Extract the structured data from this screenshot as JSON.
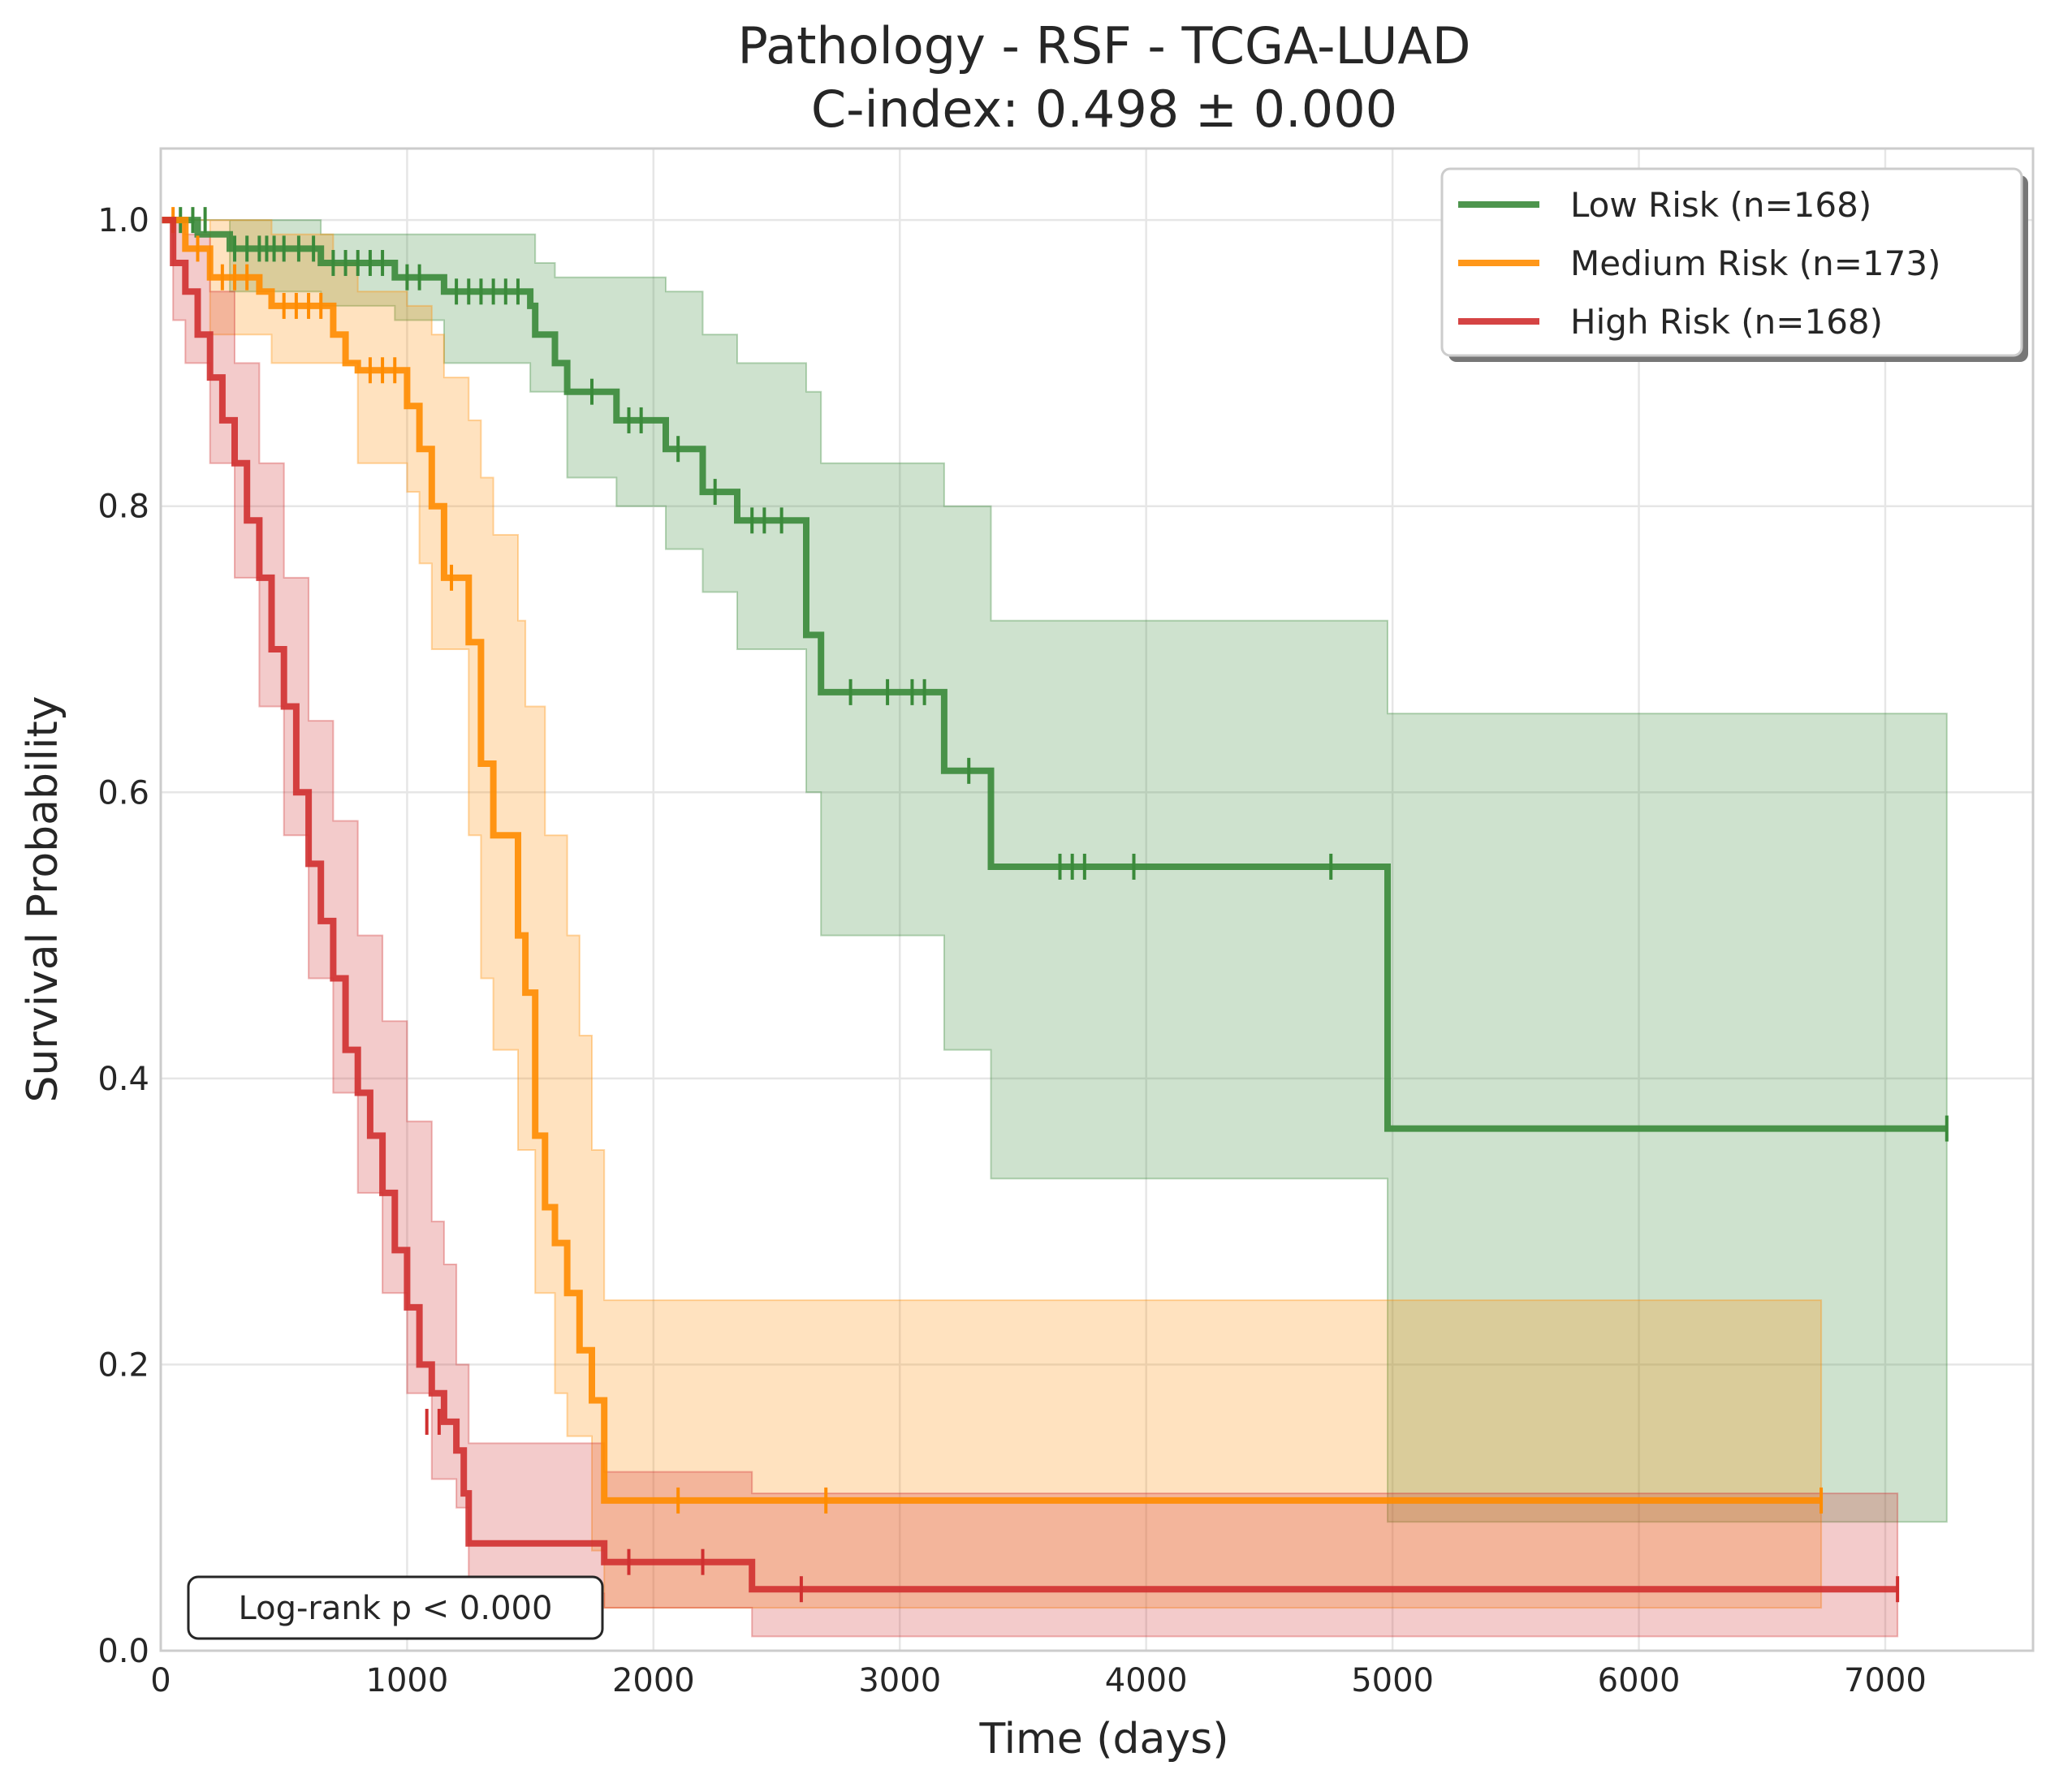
{
  "chart_data": {
    "type": "line",
    "subtype": "kaplan-meier",
    "title": "Pathology - RSF - TCGA-LUAD",
    "subtitle": "C-index: 0.498 ± 0.000",
    "xlabel": "Time (days)",
    "ylabel": "Survival Probability",
    "xlim": [
      0,
      7600
    ],
    "ylim": [
      0,
      1.05
    ],
    "xticks": [
      0,
      1000,
      2000,
      3000,
      4000,
      5000,
      6000,
      7000
    ],
    "xtick_labels": [
      "0",
      "1000",
      "2000",
      "3000",
      "4000",
      "5000",
      "6000",
      "7000"
    ],
    "yticks": [
      0,
      0.2,
      0.4,
      0.6,
      0.8,
      1.0
    ],
    "ytick_labels": [
      "0.0",
      "0.2",
      "0.4",
      "0.6",
      "0.8",
      "1.0"
    ],
    "grid": true,
    "legend_position": "top-right",
    "annotation": "Log-rank p < 0.000",
    "series": [
      {
        "name": "Low Risk (n=168)",
        "color": "#3a8a3a",
        "steps": [
          [
            0,
            1.0
          ],
          [
            150,
            0.99
          ],
          [
            280,
            0.98
          ],
          [
            650,
            0.97
          ],
          [
            950,
            0.96
          ],
          [
            1150,
            0.95
          ],
          [
            1500,
            0.94
          ],
          [
            1520,
            0.92
          ],
          [
            1600,
            0.9
          ],
          [
            1650,
            0.88
          ],
          [
            1850,
            0.86
          ],
          [
            2050,
            0.84
          ],
          [
            2200,
            0.81
          ],
          [
            2340,
            0.79
          ],
          [
            2620,
            0.71
          ],
          [
            2680,
            0.67
          ],
          [
            3180,
            0.615
          ],
          [
            3370,
            0.548
          ],
          [
            4980,
            0.365
          ],
          [
            7250,
            0.365
          ]
        ],
        "ci_upper": [
          [
            0,
            1.0
          ],
          [
            280,
            1.0
          ],
          [
            650,
            0.99
          ],
          [
            950,
            0.99
          ],
          [
            1500,
            0.99
          ],
          [
            1520,
            0.97
          ],
          [
            1600,
            0.96
          ],
          [
            2050,
            0.95
          ],
          [
            2200,
            0.92
          ],
          [
            2340,
            0.9
          ],
          [
            2620,
            0.88
          ],
          [
            2680,
            0.83
          ],
          [
            3180,
            0.8
          ],
          [
            3370,
            0.76
          ],
          [
            3370,
            0.72
          ],
          [
            4980,
            0.655
          ],
          [
            7250,
            0.655
          ]
        ],
        "ci_lower": [
          [
            0,
            1.0
          ],
          [
            280,
            0.95
          ],
          [
            650,
            0.94
          ],
          [
            950,
            0.93
          ],
          [
            1150,
            0.9
          ],
          [
            1500,
            0.88
          ],
          [
            1650,
            0.82
          ],
          [
            1850,
            0.8
          ],
          [
            2050,
            0.77
          ],
          [
            2200,
            0.74
          ],
          [
            2340,
            0.7
          ],
          [
            2620,
            0.6
          ],
          [
            2680,
            0.5
          ],
          [
            3180,
            0.42
          ],
          [
            3370,
            0.33
          ],
          [
            4980,
            0.09
          ],
          [
            7250,
            0.09
          ]
        ],
        "censored": [
          [
            80,
            1.0
          ],
          [
            130,
            1.0
          ],
          [
            180,
            1.0
          ],
          [
            300,
            0.98
          ],
          [
            350,
            0.98
          ],
          [
            400,
            0.98
          ],
          [
            430,
            0.98
          ],
          [
            460,
            0.98
          ],
          [
            500,
            0.98
          ],
          [
            560,
            0.98
          ],
          [
            620,
            0.98
          ],
          [
            700,
            0.97
          ],
          [
            750,
            0.97
          ],
          [
            800,
            0.97
          ],
          [
            850,
            0.97
          ],
          [
            900,
            0.97
          ],
          [
            1000,
            0.96
          ],
          [
            1050,
            0.96
          ],
          [
            1200,
            0.95
          ],
          [
            1250,
            0.95
          ],
          [
            1300,
            0.95
          ],
          [
            1350,
            0.95
          ],
          [
            1400,
            0.95
          ],
          [
            1450,
            0.95
          ],
          [
            1750,
            0.88
          ],
          [
            1900,
            0.86
          ],
          [
            1950,
            0.86
          ],
          [
            2100,
            0.84
          ],
          [
            2250,
            0.81
          ],
          [
            2400,
            0.79
          ],
          [
            2450,
            0.79
          ],
          [
            2520,
            0.79
          ],
          [
            2800,
            0.67
          ],
          [
            2950,
            0.67
          ],
          [
            3050,
            0.67
          ],
          [
            3100,
            0.67
          ],
          [
            3280,
            0.615
          ],
          [
            3650,
            0.548
          ],
          [
            3700,
            0.548
          ],
          [
            3750,
            0.548
          ],
          [
            3950,
            0.548
          ],
          [
            4750,
            0.548
          ],
          [
            7250,
            0.365
          ]
        ]
      },
      {
        "name": "Medium Risk (n=173)",
        "color": "#ff8c00",
        "steps": [
          [
            0,
            1.0
          ],
          [
            100,
            0.98
          ],
          [
            200,
            0.96
          ],
          [
            400,
            0.95
          ],
          [
            450,
            0.94
          ],
          [
            700,
            0.92
          ],
          [
            750,
            0.9
          ],
          [
            800,
            0.895
          ],
          [
            1000,
            0.87
          ],
          [
            1050,
            0.84
          ],
          [
            1100,
            0.8
          ],
          [
            1150,
            0.75
          ],
          [
            1250,
            0.705
          ],
          [
            1300,
            0.62
          ],
          [
            1350,
            0.57
          ],
          [
            1450,
            0.5
          ],
          [
            1480,
            0.46
          ],
          [
            1520,
            0.36
          ],
          [
            1560,
            0.31
          ],
          [
            1600,
            0.285
          ],
          [
            1650,
            0.25
          ],
          [
            1700,
            0.21
          ],
          [
            1750,
            0.175
          ],
          [
            1800,
            0.105
          ],
          [
            6740,
            0.105
          ]
        ],
        "ci_upper": [
          [
            0,
            1.0
          ],
          [
            200,
            1.0
          ],
          [
            450,
            0.99
          ],
          [
            700,
            0.97
          ],
          [
            800,
            0.95
          ],
          [
            1000,
            0.94
          ],
          [
            1100,
            0.92
          ],
          [
            1150,
            0.89
          ],
          [
            1250,
            0.86
          ],
          [
            1300,
            0.82
          ],
          [
            1350,
            0.78
          ],
          [
            1450,
            0.72
          ],
          [
            1480,
            0.66
          ],
          [
            1560,
            0.57
          ],
          [
            1650,
            0.5
          ],
          [
            1700,
            0.43
          ],
          [
            1750,
            0.35
          ],
          [
            1800,
            0.245
          ],
          [
            6740,
            0.245
          ]
        ],
        "ci_lower": [
          [
            0,
            1.0
          ],
          [
            200,
            0.92
          ],
          [
            450,
            0.9
          ],
          [
            800,
            0.83
          ],
          [
            1000,
            0.81
          ],
          [
            1050,
            0.76
          ],
          [
            1100,
            0.7
          ],
          [
            1250,
            0.57
          ],
          [
            1300,
            0.47
          ],
          [
            1350,
            0.42
          ],
          [
            1450,
            0.35
          ],
          [
            1520,
            0.25
          ],
          [
            1600,
            0.18
          ],
          [
            1650,
            0.15
          ],
          [
            1750,
            0.07
          ],
          [
            1800,
            0.03
          ],
          [
            6740,
            0.03
          ]
        ],
        "censored": [
          [
            50,
            1.0
          ],
          [
            150,
            0.98
          ],
          [
            250,
            0.96
          ],
          [
            300,
            0.96
          ],
          [
            350,
            0.96
          ],
          [
            500,
            0.94
          ],
          [
            550,
            0.94
          ],
          [
            600,
            0.94
          ],
          [
            650,
            0.94
          ],
          [
            850,
            0.895
          ],
          [
            900,
            0.895
          ],
          [
            950,
            0.895
          ],
          [
            1180,
            0.75
          ],
          [
            2100,
            0.105
          ],
          [
            2700,
            0.105
          ],
          [
            6740,
            0.105
          ]
        ]
      },
      {
        "name": "High Risk (n=168)",
        "color": "#d03030",
        "steps": [
          [
            0,
            1.0
          ],
          [
            50,
            0.97
          ],
          [
            100,
            0.95
          ],
          [
            150,
            0.92
          ],
          [
            200,
            0.89
          ],
          [
            250,
            0.86
          ],
          [
            300,
            0.83
          ],
          [
            350,
            0.79
          ],
          [
            400,
            0.75
          ],
          [
            450,
            0.7
          ],
          [
            500,
            0.66
          ],
          [
            550,
            0.6
          ],
          [
            600,
            0.55
          ],
          [
            650,
            0.51
          ],
          [
            700,
            0.47
          ],
          [
            750,
            0.42
          ],
          [
            800,
            0.39
          ],
          [
            850,
            0.36
          ],
          [
            900,
            0.32
          ],
          [
            950,
            0.28
          ],
          [
            1000,
            0.24
          ],
          [
            1050,
            0.2
          ],
          [
            1100,
            0.18
          ],
          [
            1150,
            0.16
          ],
          [
            1200,
            0.14
          ],
          [
            1230,
            0.11
          ],
          [
            1250,
            0.08
          ],
          [
            1250,
            0.075
          ],
          [
            1800,
            0.062
          ],
          [
            2400,
            0.043
          ],
          [
            7050,
            0.043
          ]
        ],
        "ci_upper": [
          [
            0,
            1.0
          ],
          [
            50,
            1.0
          ],
          [
            100,
            0.99
          ],
          [
            200,
            0.95
          ],
          [
            300,
            0.9
          ],
          [
            400,
            0.83
          ],
          [
            500,
            0.75
          ],
          [
            600,
            0.65
          ],
          [
            700,
            0.58
          ],
          [
            800,
            0.5
          ],
          [
            900,
            0.44
          ],
          [
            1000,
            0.37
          ],
          [
            1100,
            0.3
          ],
          [
            1150,
            0.27
          ],
          [
            1200,
            0.2
          ],
          [
            1250,
            0.145
          ],
          [
            1800,
            0.125
          ],
          [
            2400,
            0.11
          ],
          [
            7050,
            0.11
          ]
        ],
        "ci_lower": [
          [
            0,
            1.0
          ],
          [
            50,
            0.93
          ],
          [
            100,
            0.9
          ],
          [
            200,
            0.83
          ],
          [
            300,
            0.75
          ],
          [
            400,
            0.66
          ],
          [
            500,
            0.57
          ],
          [
            600,
            0.47
          ],
          [
            700,
            0.39
          ],
          [
            800,
            0.32
          ],
          [
            900,
            0.25
          ],
          [
            1000,
            0.18
          ],
          [
            1100,
            0.12
          ],
          [
            1200,
            0.1
          ],
          [
            1250,
            0.04
          ],
          [
            1800,
            0.03
          ],
          [
            2400,
            0.01
          ],
          [
            7050,
            0.01
          ]
        ],
        "censored": [
          [
            1080,
            0.16
          ],
          [
            1130,
            0.16
          ],
          [
            1900,
            0.062
          ],
          [
            2200,
            0.062
          ],
          [
            2600,
            0.043
          ],
          [
            7050,
            0.043
          ]
        ]
      }
    ]
  }
}
